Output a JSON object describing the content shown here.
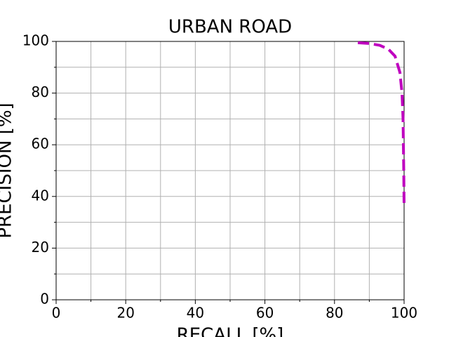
{
  "chart_data": {
    "type": "line",
    "title": "URBAN ROAD",
    "x_label": "RECALL [%]",
    "y_label": "PRECISION [%]",
    "series": [
      {
        "color": "#bf00bf",
        "x": [
          86.7,
          90,
          93,
          95.5,
          97.4,
          98.8,
          99.4,
          99.7,
          99.8,
          99.9,
          100
        ],
        "values": [
          99.5,
          99.2,
          98.5,
          97,
          94.3,
          88,
          80,
          70,
          60,
          50,
          36
        ]
      }
    ],
    "xlim": [
      0,
      100
    ],
    "ylim": [
      0,
      100
    ],
    "xticks": [
      0,
      20,
      40,
      60,
      80,
      100
    ],
    "yticks": [
      0,
      20,
      40,
      60,
      80,
      100
    ],
    "xminorticks": [
      10,
      30,
      50,
      70,
      90
    ],
    "yminorticks": [
      10,
      30,
      50,
      70,
      90
    ],
    "grid": true,
    "dashed": true
  }
}
